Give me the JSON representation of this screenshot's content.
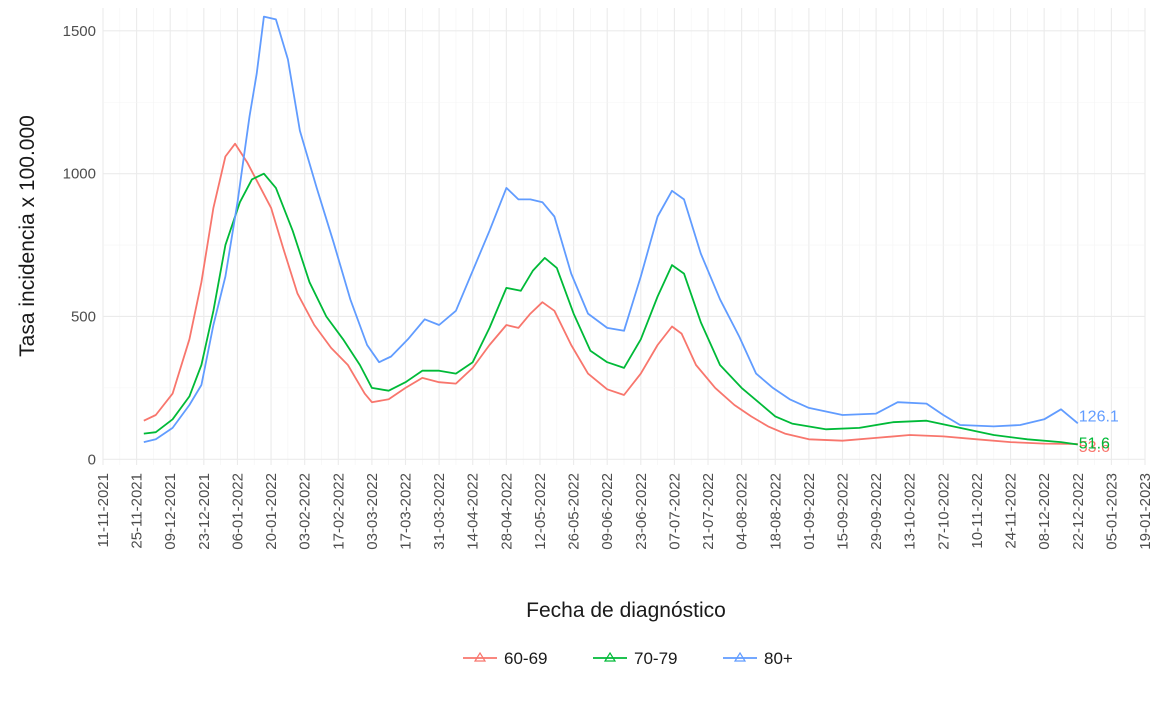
{
  "chart_data": {
    "type": "line",
    "title": "",
    "xlabel": "Fecha de diagnóstico",
    "ylabel": "Tasa incidencia x 100.000",
    "x_ticks": [
      "11-11-2021",
      "25-11-2021",
      "09-12-2021",
      "23-12-2021",
      "06-01-2022",
      "20-01-2022",
      "03-02-2022",
      "17-02-2022",
      "03-03-2022",
      "17-03-2022",
      "31-03-2022",
      "14-04-2022",
      "28-04-2022",
      "12-05-2022",
      "26-05-2022",
      "09-06-2022",
      "23-06-2022",
      "07-07-2022",
      "21-07-2022",
      "04-08-2022",
      "18-08-2022",
      "01-09-2022",
      "15-09-2022",
      "29-09-2022",
      "13-10-2022",
      "27-10-2022",
      "10-11-2022",
      "24-11-2022",
      "08-12-2022",
      "22-12-2022",
      "05-01-2023",
      "19-01-2023"
    ],
    "y_ticks": [
      "0",
      "500",
      "1000",
      "1500"
    ],
    "xlim": [
      "2021-11-11",
      "2023-01-19"
    ],
    "ylim": [
      -20,
      1580
    ],
    "grid": true,
    "legend_position": "bottom",
    "series": [
      {
        "name": "60-69",
        "color": "#F8766D",
        "end_label": "53.6",
        "points": [
          [
            "2021-11-28",
            135
          ],
          [
            "2021-12-03",
            155
          ],
          [
            "2021-12-10",
            230
          ],
          [
            "2021-12-17",
            420
          ],
          [
            "2021-12-22",
            620
          ],
          [
            "2021-12-27",
            880
          ],
          [
            "2022-01-01",
            1060
          ],
          [
            "2022-01-05",
            1105
          ],
          [
            "2022-01-10",
            1040
          ],
          [
            "2022-01-15",
            960
          ],
          [
            "2022-01-20",
            880
          ],
          [
            "2022-01-25",
            740
          ],
          [
            "2022-01-31",
            580
          ],
          [
            "2022-02-07",
            470
          ],
          [
            "2022-02-14",
            390
          ],
          [
            "2022-02-21",
            330
          ],
          [
            "2022-02-28",
            230
          ],
          [
            "2022-03-03",
            200
          ],
          [
            "2022-03-10",
            210
          ],
          [
            "2022-03-17",
            250
          ],
          [
            "2022-03-24",
            285
          ],
          [
            "2022-03-31",
            270
          ],
          [
            "2022-04-07",
            265
          ],
          [
            "2022-04-14",
            320
          ],
          [
            "2022-04-21",
            400
          ],
          [
            "2022-04-28",
            470
          ],
          [
            "2022-05-03",
            460
          ],
          [
            "2022-05-08",
            510
          ],
          [
            "2022-05-13",
            550
          ],
          [
            "2022-05-18",
            520
          ],
          [
            "2022-05-25",
            400
          ],
          [
            "2022-06-01",
            300
          ],
          [
            "2022-06-09",
            245
          ],
          [
            "2022-06-16",
            225
          ],
          [
            "2022-06-23",
            300
          ],
          [
            "2022-06-30",
            400
          ],
          [
            "2022-07-06",
            465
          ],
          [
            "2022-07-10",
            440
          ],
          [
            "2022-07-16",
            330
          ],
          [
            "2022-07-24",
            250
          ],
          [
            "2022-08-01",
            190
          ],
          [
            "2022-08-08",
            150
          ],
          [
            "2022-08-15",
            115
          ],
          [
            "2022-08-22",
            90
          ],
          [
            "2022-09-01",
            70
          ],
          [
            "2022-09-15",
            65
          ],
          [
            "2022-09-29",
            75
          ],
          [
            "2022-10-13",
            85
          ],
          [
            "2022-10-27",
            80
          ],
          [
            "2022-11-10",
            70
          ],
          [
            "2022-11-24",
            60
          ],
          [
            "2022-12-08",
            55
          ],
          [
            "2022-12-22",
            53.6
          ]
        ]
      },
      {
        "name": "70-79",
        "color": "#00BA38",
        "end_label": "51.6",
        "points": [
          [
            "2021-11-28",
            90
          ],
          [
            "2021-12-03",
            95
          ],
          [
            "2021-12-10",
            140
          ],
          [
            "2021-12-17",
            220
          ],
          [
            "2021-12-22",
            330
          ],
          [
            "2021-12-27",
            520
          ],
          [
            "2022-01-01",
            750
          ],
          [
            "2022-01-07",
            900
          ],
          [
            "2022-01-12",
            980
          ],
          [
            "2022-01-17",
            1000
          ],
          [
            "2022-01-22",
            950
          ],
          [
            "2022-01-29",
            800
          ],
          [
            "2022-02-05",
            620
          ],
          [
            "2022-02-12",
            500
          ],
          [
            "2022-02-19",
            420
          ],
          [
            "2022-02-26",
            330
          ],
          [
            "2022-03-03",
            250
          ],
          [
            "2022-03-10",
            240
          ],
          [
            "2022-03-17",
            270
          ],
          [
            "2022-03-24",
            310
          ],
          [
            "2022-03-31",
            310
          ],
          [
            "2022-04-07",
            300
          ],
          [
            "2022-04-14",
            340
          ],
          [
            "2022-04-21",
            460
          ],
          [
            "2022-04-28",
            600
          ],
          [
            "2022-05-04",
            590
          ],
          [
            "2022-05-09",
            660
          ],
          [
            "2022-05-14",
            705
          ],
          [
            "2022-05-19",
            670
          ],
          [
            "2022-05-26",
            510
          ],
          [
            "2022-06-02",
            380
          ],
          [
            "2022-06-09",
            340
          ],
          [
            "2022-06-16",
            320
          ],
          [
            "2022-06-23",
            420
          ],
          [
            "2022-06-30",
            570
          ],
          [
            "2022-07-06",
            680
          ],
          [
            "2022-07-11",
            650
          ],
          [
            "2022-07-18",
            480
          ],
          [
            "2022-07-26",
            330
          ],
          [
            "2022-08-04",
            250
          ],
          [
            "2022-08-11",
            200
          ],
          [
            "2022-08-18",
            150
          ],
          [
            "2022-08-25",
            125
          ],
          [
            "2022-09-08",
            105
          ],
          [
            "2022-09-22",
            110
          ],
          [
            "2022-10-06",
            130
          ],
          [
            "2022-10-20",
            135
          ],
          [
            "2022-11-03",
            110
          ],
          [
            "2022-11-17",
            85
          ],
          [
            "2022-12-01",
            70
          ],
          [
            "2022-12-15",
            60
          ],
          [
            "2022-12-22",
            51.6
          ]
        ]
      },
      {
        "name": "80+",
        "color": "#619CFF",
        "end_label": "126.1",
        "points": [
          [
            "2021-11-28",
            60
          ],
          [
            "2021-12-03",
            70
          ],
          [
            "2021-12-10",
            110
          ],
          [
            "2021-12-17",
            190
          ],
          [
            "2021-12-22",
            260
          ],
          [
            "2021-12-27",
            470
          ],
          [
            "2022-01-01",
            640
          ],
          [
            "2022-01-06",
            900
          ],
          [
            "2022-01-11",
            1200
          ],
          [
            "2022-01-14",
            1350
          ],
          [
            "2022-01-17",
            1550
          ],
          [
            "2022-01-22",
            1540
          ],
          [
            "2022-01-27",
            1400
          ],
          [
            "2022-02-01",
            1150
          ],
          [
            "2022-02-08",
            950
          ],
          [
            "2022-02-15",
            760
          ],
          [
            "2022-02-22",
            560
          ],
          [
            "2022-03-01",
            400
          ],
          [
            "2022-03-06",
            340
          ],
          [
            "2022-03-11",
            360
          ],
          [
            "2022-03-18",
            420
          ],
          [
            "2022-03-25",
            490
          ],
          [
            "2022-03-31",
            470
          ],
          [
            "2022-04-07",
            520
          ],
          [
            "2022-04-14",
            660
          ],
          [
            "2022-04-21",
            800
          ],
          [
            "2022-04-28",
            950
          ],
          [
            "2022-05-03",
            910
          ],
          [
            "2022-05-08",
            910
          ],
          [
            "2022-05-13",
            900
          ],
          [
            "2022-05-18",
            850
          ],
          [
            "2022-05-25",
            650
          ],
          [
            "2022-06-01",
            510
          ],
          [
            "2022-06-09",
            460
          ],
          [
            "2022-06-16",
            450
          ],
          [
            "2022-06-23",
            640
          ],
          [
            "2022-06-30",
            850
          ],
          [
            "2022-07-06",
            940
          ],
          [
            "2022-07-11",
            910
          ],
          [
            "2022-07-18",
            720
          ],
          [
            "2022-07-26",
            560
          ],
          [
            "2022-08-03",
            430
          ],
          [
            "2022-08-10",
            300
          ],
          [
            "2022-08-17",
            250
          ],
          [
            "2022-08-24",
            210
          ],
          [
            "2022-09-01",
            180
          ],
          [
            "2022-09-15",
            155
          ],
          [
            "2022-09-29",
            160
          ],
          [
            "2022-10-08",
            200
          ],
          [
            "2022-10-20",
            195
          ],
          [
            "2022-10-27",
            155
          ],
          [
            "2022-11-03",
            120
          ],
          [
            "2022-11-17",
            115
          ],
          [
            "2022-11-28",
            120
          ],
          [
            "2022-12-08",
            140
          ],
          [
            "2022-12-15",
            175
          ],
          [
            "2022-12-22",
            126.1
          ]
        ]
      }
    ]
  }
}
